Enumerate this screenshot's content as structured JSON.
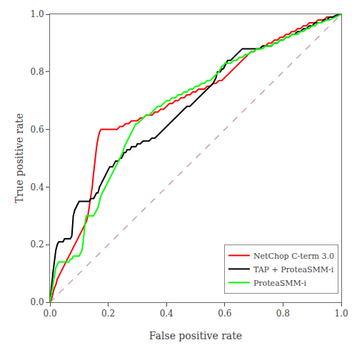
{
  "chart_data": {
    "type": "line",
    "xlabel": "False positive rate",
    "ylabel": "True positive rate",
    "xlim": [
      0,
      1
    ],
    "ylim": [
      0,
      1
    ],
    "xticks": [
      {
        "value": 0,
        "label": "0.0"
      },
      0.2,
      0.4,
      0.6,
      0.8,
      {
        "value": 1.0,
        "label": "1.0"
      }
    ],
    "yticks": [
      {
        "value": 0,
        "label": "0.0"
      },
      0.2,
      0.4,
      0.6,
      0.8,
      {
        "value": 1.0,
        "label": "1.0"
      }
    ],
    "grid": false,
    "legend": "lower right",
    "series": [
      {
        "color": "#c8a0a0",
        "line_style": "dashed",
        "x": [
          0,
          1
        ],
        "values": [
          0,
          1
        ]
      },
      {
        "name": "NetChop C-term 3.0",
        "color": "red",
        "line_style": "solid",
        "x": [
          0.0,
          0.005,
          0.01,
          0.015,
          0.02,
          0.025,
          0.03,
          0.035,
          0.04,
          0.045,
          0.05,
          0.055,
          0.06,
          0.065,
          0.07,
          0.075,
          0.08,
          0.085,
          0.09,
          0.095,
          0.1,
          0.105,
          0.11,
          0.115,
          0.12,
          0.125,
          0.13,
          0.135,
          0.14,
          0.145,
          0.15,
          0.155,
          0.16,
          0.165,
          0.17,
          0.175,
          0.18,
          0.19,
          0.2,
          0.21,
          0.22,
          0.23,
          0.24,
          0.25,
          0.26,
          0.27,
          0.28,
          0.29,
          0.3,
          0.31,
          0.32,
          0.33,
          0.34,
          0.35,
          0.36,
          0.37,
          0.38,
          0.39,
          0.4,
          0.41,
          0.42,
          0.43,
          0.44,
          0.45,
          0.46,
          0.47,
          0.48,
          0.49,
          0.5,
          0.51,
          0.52,
          0.53,
          0.54,
          0.55,
          0.56,
          0.57,
          0.58,
          0.59,
          0.6,
          0.61,
          0.62,
          0.63,
          0.64,
          0.65,
          0.66,
          0.67,
          0.68,
          0.69,
          0.7,
          0.71,
          0.72,
          0.73,
          0.74,
          0.75,
          0.76,
          0.77,
          0.78,
          0.79,
          0.8,
          0.81,
          0.82,
          0.83,
          0.84,
          0.85,
          0.86,
          0.87,
          0.88,
          0.89,
          0.9,
          0.91,
          0.92,
          0.93,
          0.94,
          0.95,
          0.96,
          0.97,
          0.98,
          0.99,
          1.0
        ],
        "values": [
          0.0,
          0.01,
          0.03,
          0.05,
          0.06,
          0.08,
          0.09,
          0.1,
          0.11,
          0.12,
          0.13,
          0.14,
          0.15,
          0.16,
          0.17,
          0.18,
          0.19,
          0.2,
          0.21,
          0.22,
          0.23,
          0.24,
          0.25,
          0.26,
          0.27,
          0.28,
          0.3,
          0.33,
          0.36,
          0.4,
          0.45,
          0.5,
          0.54,
          0.57,
          0.59,
          0.6,
          0.6,
          0.6,
          0.6,
          0.6,
          0.6,
          0.6,
          0.61,
          0.61,
          0.62,
          0.62,
          0.63,
          0.63,
          0.63,
          0.64,
          0.64,
          0.65,
          0.65,
          0.65,
          0.66,
          0.66,
          0.67,
          0.67,
          0.68,
          0.69,
          0.69,
          0.7,
          0.7,
          0.71,
          0.71,
          0.72,
          0.72,
          0.73,
          0.73,
          0.74,
          0.74,
          0.74,
          0.75,
          0.75,
          0.76,
          0.76,
          0.77,
          0.77,
          0.78,
          0.79,
          0.8,
          0.81,
          0.82,
          0.83,
          0.84,
          0.85,
          0.86,
          0.87,
          0.87,
          0.88,
          0.88,
          0.89,
          0.89,
          0.9,
          0.9,
          0.91,
          0.91,
          0.92,
          0.92,
          0.93,
          0.93,
          0.94,
          0.94,
          0.95,
          0.95,
          0.96,
          0.96,
          0.97,
          0.97,
          0.97,
          0.98,
          0.98,
          0.98,
          0.99,
          0.99,
          0.99,
          0.995,
          0.998,
          1.0
        ]
      },
      {
        "name": "TAP + ProteaSMM-i",
        "color": "black",
        "line_style": "solid",
        "x": [
          0.0,
          0.005,
          0.01,
          0.015,
          0.02,
          0.025,
          0.03,
          0.035,
          0.04,
          0.045,
          0.05,
          0.055,
          0.06,
          0.065,
          0.07,
          0.075,
          0.08,
          0.085,
          0.09,
          0.095,
          0.1,
          0.105,
          0.11,
          0.115,
          0.12,
          0.125,
          0.13,
          0.135,
          0.14,
          0.145,
          0.15,
          0.155,
          0.16,
          0.165,
          0.17,
          0.175,
          0.18,
          0.185,
          0.19,
          0.195,
          0.2,
          0.205,
          0.21,
          0.215,
          0.22,
          0.225,
          0.23,
          0.235,
          0.24,
          0.245,
          0.25,
          0.255,
          0.26,
          0.265,
          0.27,
          0.275,
          0.28,
          0.285,
          0.29,
          0.295,
          0.3,
          0.31,
          0.32,
          0.33,
          0.34,
          0.35,
          0.36,
          0.37,
          0.38,
          0.39,
          0.4,
          0.41,
          0.42,
          0.43,
          0.44,
          0.45,
          0.46,
          0.47,
          0.48,
          0.49,
          0.5,
          0.51,
          0.52,
          0.53,
          0.54,
          0.55,
          0.56,
          0.57,
          0.575,
          0.58,
          0.585,
          0.59,
          0.595,
          0.6,
          0.605,
          0.61,
          0.615,
          0.62,
          0.63,
          0.64,
          0.65,
          0.66,
          0.67,
          0.68,
          0.69,
          0.7,
          0.71,
          0.72,
          0.73,
          0.74,
          0.75,
          0.76,
          0.77,
          0.78,
          0.79,
          0.8,
          0.81,
          0.82,
          0.83,
          0.84,
          0.85,
          0.86,
          0.87,
          0.88,
          0.89,
          0.9,
          0.91,
          0.92,
          0.93,
          0.94,
          0.95,
          0.96,
          0.97,
          0.98,
          1.0
        ],
        "values": [
          0.0,
          0.06,
          0.1,
          0.14,
          0.18,
          0.2,
          0.21,
          0.21,
          0.21,
          0.21,
          0.22,
          0.22,
          0.22,
          0.22,
          0.22,
          0.23,
          0.3,
          0.32,
          0.33,
          0.34,
          0.35,
          0.35,
          0.35,
          0.35,
          0.35,
          0.35,
          0.35,
          0.35,
          0.36,
          0.36,
          0.36,
          0.37,
          0.38,
          0.38,
          0.4,
          0.41,
          0.42,
          0.43,
          0.44,
          0.45,
          0.46,
          0.47,
          0.47,
          0.47,
          0.48,
          0.49,
          0.49,
          0.49,
          0.5,
          0.5,
          0.51,
          0.52,
          0.52,
          0.53,
          0.53,
          0.53,
          0.54,
          0.54,
          0.54,
          0.54,
          0.55,
          0.55,
          0.56,
          0.56,
          0.56,
          0.57,
          0.57,
          0.58,
          0.59,
          0.6,
          0.61,
          0.62,
          0.63,
          0.64,
          0.65,
          0.66,
          0.67,
          0.68,
          0.68,
          0.69,
          0.7,
          0.71,
          0.72,
          0.73,
          0.74,
          0.75,
          0.76,
          0.78,
          0.8,
          0.8,
          0.8,
          0.81,
          0.81,
          0.82,
          0.83,
          0.84,
          0.84,
          0.84,
          0.85,
          0.86,
          0.87,
          0.88,
          0.88,
          0.88,
          0.88,
          0.88,
          0.88,
          0.88,
          0.89,
          0.89,
          0.89,
          0.89,
          0.9,
          0.9,
          0.91,
          0.91,
          0.92,
          0.92,
          0.93,
          0.93,
          0.94,
          0.94,
          0.95,
          0.95,
          0.96,
          0.96,
          0.97,
          0.97,
          0.97,
          0.98,
          0.98,
          0.99,
          0.99,
          0.995,
          1.0
        ]
      },
      {
        "name": "ProteaSMM-i",
        "color": "lime",
        "line_style": "solid",
        "x": [
          0.0,
          0.005,
          0.01,
          0.015,
          0.02,
          0.025,
          0.03,
          0.035,
          0.04,
          0.045,
          0.05,
          0.055,
          0.06,
          0.065,
          0.07,
          0.075,
          0.08,
          0.085,
          0.09,
          0.095,
          0.1,
          0.105,
          0.11,
          0.115,
          0.12,
          0.125,
          0.13,
          0.135,
          0.14,
          0.145,
          0.15,
          0.155,
          0.16,
          0.165,
          0.17,
          0.175,
          0.18,
          0.185,
          0.19,
          0.195,
          0.2,
          0.205,
          0.21,
          0.215,
          0.22,
          0.225,
          0.23,
          0.235,
          0.24,
          0.245,
          0.25,
          0.255,
          0.26,
          0.265,
          0.27,
          0.275,
          0.28,
          0.285,
          0.29,
          0.295,
          0.3,
          0.31,
          0.32,
          0.33,
          0.34,
          0.35,
          0.36,
          0.37,
          0.38,
          0.39,
          0.4,
          0.41,
          0.42,
          0.43,
          0.44,
          0.45,
          0.46,
          0.47,
          0.48,
          0.49,
          0.5,
          0.51,
          0.52,
          0.53,
          0.54,
          0.55,
          0.56,
          0.57,
          0.58,
          0.585,
          0.59,
          0.595,
          0.6,
          0.605,
          0.61,
          0.615,
          0.62,
          0.63,
          0.64,
          0.65,
          0.66,
          0.67,
          0.68,
          0.69,
          0.7,
          0.71,
          0.72,
          0.73,
          0.74,
          0.75,
          0.76,
          0.77,
          0.78,
          0.79,
          0.8,
          0.81,
          0.82,
          0.83,
          0.84,
          0.85,
          0.86,
          0.87,
          0.88,
          0.89,
          0.9,
          0.91,
          0.92,
          0.93,
          0.94,
          0.95,
          0.96,
          0.97,
          0.98,
          0.99,
          1.0
        ],
        "values": [
          0.0,
          0.03,
          0.06,
          0.09,
          0.12,
          0.13,
          0.14,
          0.14,
          0.14,
          0.14,
          0.14,
          0.14,
          0.14,
          0.14,
          0.15,
          0.15,
          0.16,
          0.16,
          0.16,
          0.16,
          0.16,
          0.17,
          0.18,
          0.22,
          0.27,
          0.3,
          0.3,
          0.3,
          0.3,
          0.3,
          0.3,
          0.31,
          0.32,
          0.33,
          0.35,
          0.37,
          0.38,
          0.39,
          0.4,
          0.41,
          0.42,
          0.43,
          0.44,
          0.45,
          0.46,
          0.47,
          0.48,
          0.49,
          0.5,
          0.51,
          0.52,
          0.54,
          0.55,
          0.56,
          0.57,
          0.58,
          0.59,
          0.6,
          0.61,
          0.62,
          0.62,
          0.63,
          0.64,
          0.65,
          0.65,
          0.66,
          0.67,
          0.68,
          0.68,
          0.69,
          0.7,
          0.7,
          0.71,
          0.71,
          0.72,
          0.72,
          0.73,
          0.73,
          0.74,
          0.74,
          0.75,
          0.75,
          0.76,
          0.76,
          0.77,
          0.77,
          0.78,
          0.79,
          0.8,
          0.81,
          0.82,
          0.82,
          0.83,
          0.83,
          0.83,
          0.83,
          0.83,
          0.84,
          0.84,
          0.85,
          0.85,
          0.86,
          0.86,
          0.87,
          0.87,
          0.88,
          0.88,
          0.88,
          0.89,
          0.89,
          0.89,
          0.9,
          0.9,
          0.91,
          0.91,
          0.92,
          0.92,
          0.93,
          0.93,
          0.93,
          0.94,
          0.94,
          0.95,
          0.95,
          0.96,
          0.96,
          0.97,
          0.97,
          0.975,
          0.98,
          0.98,
          0.985,
          0.99,
          0.995,
          1.0
        ]
      }
    ]
  }
}
